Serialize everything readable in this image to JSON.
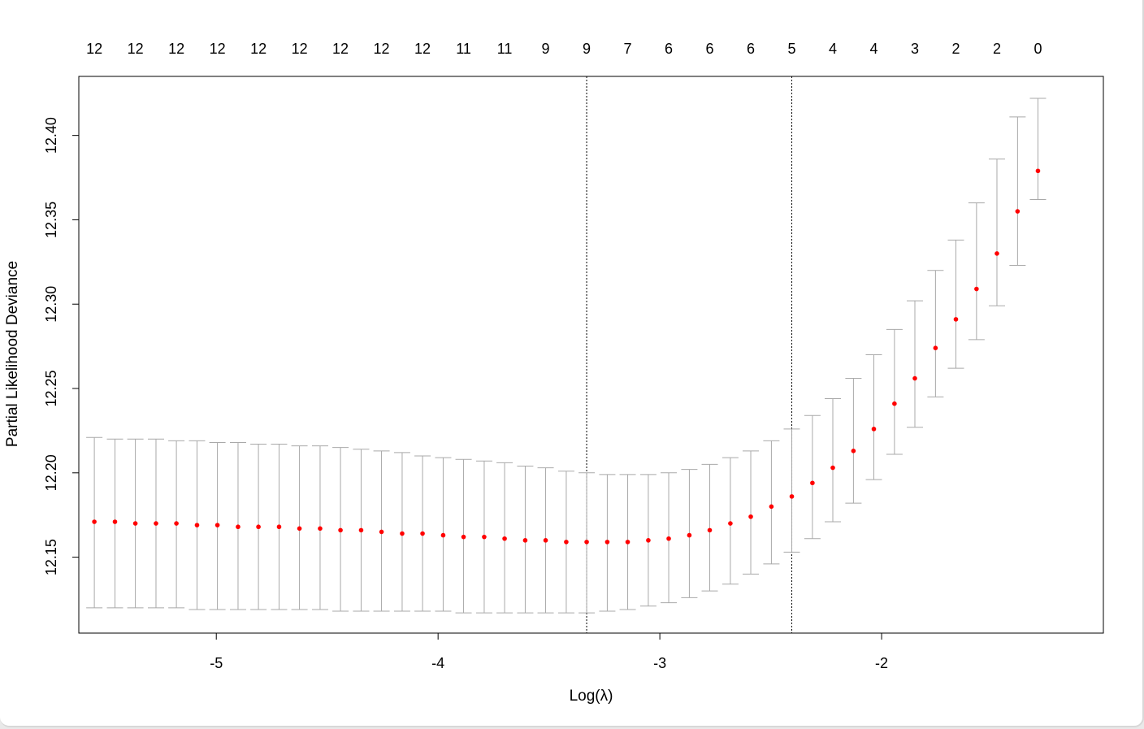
{
  "chart_data": {
    "type": "scatter",
    "subtype": "cross-validation curve with error bars",
    "title": "",
    "xlabel": "Log(λ)",
    "ylabel": "Partial Likelihood Deviance",
    "xlim": [
      -5.62,
      -1.0
    ],
    "ylim": [
      12.105,
      12.435
    ],
    "x_ticks": [
      -5,
      -4,
      -3,
      -2
    ],
    "x_tick_labels": [
      "-5",
      "-4",
      "-3",
      "-2"
    ],
    "y_ticks": [
      12.15,
      12.2,
      12.25,
      12.3,
      12.35,
      12.4
    ],
    "y_tick_labels": [
      "12.15",
      "12.20",
      "12.25",
      "12.30",
      "12.35",
      "12.40"
    ],
    "top_axis": {
      "x": [
        -5.55,
        -5.365,
        -5.18,
        -4.995,
        -4.81,
        -4.625,
        -4.44,
        -4.255,
        -4.07,
        -3.885,
        -3.7,
        -3.515,
        -3.33,
        -3.145,
        -2.96,
        -2.775,
        -2.59,
        -2.405,
        -2.22,
        -2.035,
        -1.85,
        -1.665,
        -1.48,
        -1.295
      ],
      "labels": [
        "12",
        "12",
        "12",
        "12",
        "12",
        "12",
        "12",
        "12",
        "12",
        "11",
        "11",
        "9",
        "9",
        "7",
        "6",
        "6",
        "6",
        "5",
        "4",
        "4",
        "3",
        "2",
        "2",
        "0"
      ]
    },
    "x": [
      -5.55,
      -5.457,
      -5.365,
      -5.272,
      -5.18,
      -5.087,
      -4.995,
      -4.902,
      -4.81,
      -4.717,
      -4.625,
      -4.532,
      -4.44,
      -4.347,
      -4.255,
      -4.162,
      -4.07,
      -3.977,
      -3.885,
      -3.792,
      -3.7,
      -3.607,
      -3.515,
      -3.422,
      -3.33,
      -3.237,
      -3.145,
      -3.052,
      -2.96,
      -2.867,
      -2.775,
      -2.682,
      -2.59,
      -2.497,
      -2.405,
      -2.312,
      -2.22,
      -2.127,
      -2.035,
      -1.942,
      -1.85,
      -1.757,
      -1.665,
      -1.572,
      -1.48,
      -1.387,
      -1.295
    ],
    "mean": [
      12.171,
      12.171,
      12.17,
      12.17,
      12.17,
      12.169,
      12.169,
      12.168,
      12.168,
      12.168,
      12.167,
      12.167,
      12.166,
      12.166,
      12.165,
      12.164,
      12.164,
      12.163,
      12.162,
      12.162,
      12.161,
      12.16,
      12.16,
      12.159,
      12.159,
      12.159,
      12.159,
      12.16,
      12.161,
      12.163,
      12.166,
      12.17,
      12.174,
      12.18,
      12.186,
      12.194,
      12.203,
      12.213,
      12.226,
      12.241,
      12.256,
      12.274,
      12.291,
      12.309,
      12.33,
      12.355,
      12.379
    ],
    "upper": [
      12.221,
      12.22,
      12.22,
      12.22,
      12.219,
      12.219,
      12.218,
      12.218,
      12.217,
      12.217,
      12.216,
      12.216,
      12.215,
      12.214,
      12.213,
      12.212,
      12.21,
      12.209,
      12.208,
      12.207,
      12.206,
      12.204,
      12.203,
      12.201,
      12.2,
      12.199,
      12.199,
      12.199,
      12.2,
      12.202,
      12.205,
      12.209,
      12.213,
      12.219,
      12.226,
      12.234,
      12.244,
      12.256,
      12.27,
      12.285,
      12.302,
      12.32,
      12.338,
      12.36,
      12.386,
      12.411,
      12.422
    ],
    "lower": [
      12.12,
      12.12,
      12.12,
      12.12,
      12.12,
      12.119,
      12.119,
      12.119,
      12.119,
      12.119,
      12.119,
      12.119,
      12.118,
      12.118,
      12.118,
      12.118,
      12.118,
      12.118,
      12.117,
      12.117,
      12.117,
      12.117,
      12.117,
      12.117,
      12.117,
      12.118,
      12.119,
      12.121,
      12.123,
      12.126,
      12.13,
      12.134,
      12.14,
      12.146,
      12.153,
      12.161,
      12.171,
      12.182,
      12.196,
      12.211,
      12.227,
      12.245,
      12.262,
      12.279,
      12.299,
      12.323,
      12.362
    ],
    "vlines": [
      -3.33,
      -2.405
    ],
    "grid": false,
    "legend": "none",
    "colors": {
      "points": "#ff0000",
      "error_bars": "#a9a9a9",
      "axes": "#000000",
      "vlines": "#000000"
    }
  }
}
